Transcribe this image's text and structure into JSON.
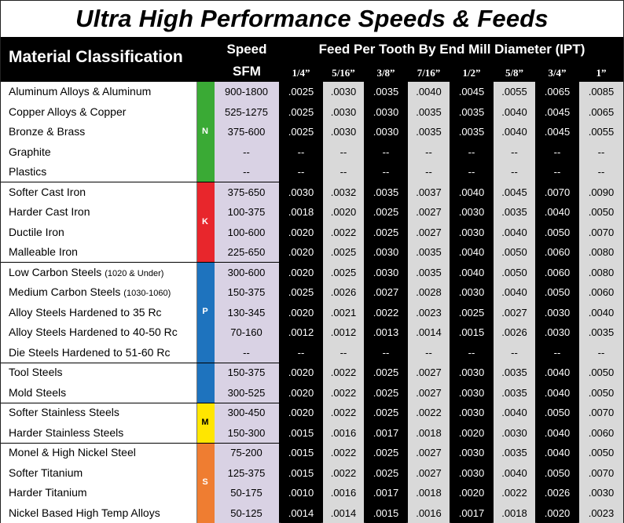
{
  "title": "Ultra High Performance Speeds & Feeds",
  "headers": {
    "material": "Material Classification",
    "speed": "Speed",
    "sfm": "SFM",
    "feed": "Feed Per Tooth By End Mill Diameter (IPT)"
  },
  "diameters": [
    "1/4”",
    "5/16”",
    "3/8”",
    "7/16”",
    "1/2”",
    "5/8”",
    "3/4”",
    "1”"
  ],
  "groups": [
    {
      "label": "N",
      "color": "#3aaa35",
      "start": 0,
      "count": 5
    },
    {
      "label": "K",
      "color": "#e8262c",
      "start": 5,
      "count": 4
    },
    {
      "label": "P",
      "color": "#1e73be",
      "start": 9,
      "count": 5
    },
    {
      "label": "",
      "color": "#1e73be",
      "start": 14,
      "count": 2
    },
    {
      "label": "M",
      "color": "#ffe600",
      "start": 16,
      "count": 2
    },
    {
      "label": "S",
      "color": "#ef7d31",
      "start": 18,
      "count": 4
    }
  ],
  "rows": [
    {
      "name": "Aluminum Alloys & Aluminum",
      "note": "",
      "sfm": "900-1800",
      "feeds": [
        ".0025",
        ".0030",
        ".0035",
        ".0040",
        ".0045",
        ".0055",
        ".0065",
        ".0085"
      ]
    },
    {
      "name": "Copper Alloys & Copper",
      "note": "",
      "sfm": "525-1275",
      "feeds": [
        ".0025",
        ".0030",
        ".0030",
        ".0035",
        ".0035",
        ".0040",
        ".0045",
        ".0065"
      ]
    },
    {
      "name": "Bronze & Brass",
      "note": "",
      "sfm": "375-600",
      "feeds": [
        ".0025",
        ".0030",
        ".0030",
        ".0035",
        ".0035",
        ".0040",
        ".0045",
        ".0055"
      ]
    },
    {
      "name": "Graphite",
      "note": "",
      "sfm": "--",
      "feeds": [
        "--",
        "--",
        "--",
        "--",
        "--",
        "--",
        "--",
        "--"
      ]
    },
    {
      "name": "Plastics",
      "note": "",
      "sfm": "--",
      "feeds": [
        "--",
        "--",
        "--",
        "--",
        "--",
        "--",
        "--",
        "--"
      ]
    },
    {
      "name": "Softer Cast Iron",
      "note": "",
      "sfm": "375-650",
      "feeds": [
        ".0030",
        ".0032",
        ".0035",
        ".0037",
        ".0040",
        ".0045",
        ".0070",
        ".0090"
      ]
    },
    {
      "name": "Harder Cast Iron",
      "note": "",
      "sfm": "100-375",
      "feeds": [
        ".0018",
        ".0020",
        ".0025",
        ".0027",
        ".0030",
        ".0035",
        ".0040",
        ".0050"
      ]
    },
    {
      "name": "Ductile Iron",
      "note": "",
      "sfm": "100-600",
      "feeds": [
        ".0020",
        ".0022",
        ".0025",
        ".0027",
        ".0030",
        ".0040",
        ".0050",
        ".0070"
      ]
    },
    {
      "name": "Malleable Iron",
      "note": "",
      "sfm": "225-650",
      "feeds": [
        ".0020",
        ".0025",
        ".0030",
        ".0035",
        ".0040",
        ".0050",
        ".0060",
        ".0080"
      ]
    },
    {
      "name": "Low Carbon Steels",
      "note": "(1020 & Under)",
      "sfm": "300-600",
      "feeds": [
        ".0020",
        ".0025",
        ".0030",
        ".0035",
        ".0040",
        ".0050",
        ".0060",
        ".0080"
      ]
    },
    {
      "name": "Medium Carbon Steels",
      "note": "(1030-1060)",
      "sfm": "150-375",
      "feeds": [
        ".0025",
        ".0026",
        ".0027",
        ".0028",
        ".0030",
        ".0040",
        ".0050",
        ".0060"
      ]
    },
    {
      "name": "Alloy Steels Hardened to 35 Rc",
      "note": "",
      "sfm": "130-345",
      "feeds": [
        ".0020",
        ".0021",
        ".0022",
        ".0023",
        ".0025",
        ".0027",
        ".0030",
        ".0040"
      ]
    },
    {
      "name": "Alloy Steels Hardened to 40-50 Rc",
      "note": "",
      "sfm": "70-160",
      "feeds": [
        ".0012",
        ".0012",
        ".0013",
        ".0014",
        ".0015",
        ".0026",
        ".0030",
        ".0035"
      ]
    },
    {
      "name": "Die Steels Hardened to 51-60 Rc",
      "note": "",
      "sfm": "--",
      "feeds": [
        "--",
        "--",
        "--",
        "--",
        "--",
        "--",
        "--",
        "--"
      ]
    },
    {
      "name": "Tool Steels",
      "note": "",
      "sfm": "150-375",
      "feeds": [
        ".0020",
        ".0022",
        ".0025",
        ".0027",
        ".0030",
        ".0035",
        ".0040",
        ".0050"
      ]
    },
    {
      "name": "Mold Steels",
      "note": "",
      "sfm": "300-525",
      "feeds": [
        ".0020",
        ".0022",
        ".0025",
        ".0027",
        ".0030",
        ".0035",
        ".0040",
        ".0050"
      ]
    },
    {
      "name": "Softer Stainless Steels",
      "note": "",
      "sfm": "300-450",
      "feeds": [
        ".0020",
        ".0022",
        ".0025",
        ".0022",
        ".0030",
        ".0040",
        ".0050",
        ".0070"
      ]
    },
    {
      "name": "Harder Stainless Steels",
      "note": "",
      "sfm": "150-300",
      "feeds": [
        ".0015",
        ".0016",
        ".0017",
        ".0018",
        ".0020",
        ".0030",
        ".0040",
        ".0060"
      ]
    },
    {
      "name": "Monel & High Nickel Steel",
      "note": "",
      "sfm": "75-200",
      "feeds": [
        ".0015",
        ".0022",
        ".0025",
        ".0027",
        ".0030",
        ".0035",
        ".0040",
        ".0050"
      ]
    },
    {
      "name": "Softer Titanium",
      "note": "",
      "sfm": "125-375",
      "feeds": [
        ".0015",
        ".0022",
        ".0025",
        ".0027",
        ".0030",
        ".0040",
        ".0050",
        ".0070"
      ]
    },
    {
      "name": "Harder Titanium",
      "note": "",
      "sfm": "50-175",
      "feeds": [
        ".0010",
        ".0016",
        ".0017",
        ".0018",
        ".0020",
        ".0022",
        ".0026",
        ".0030"
      ]
    },
    {
      "name": "Nickel Based High Temp Alloys",
      "note": "",
      "sfm": "50-125",
      "feeds": [
        ".0014",
        ".0014",
        ".0015",
        ".0016",
        ".0017",
        ".0018",
        ".0020",
        ".0023"
      ]
    }
  ]
}
